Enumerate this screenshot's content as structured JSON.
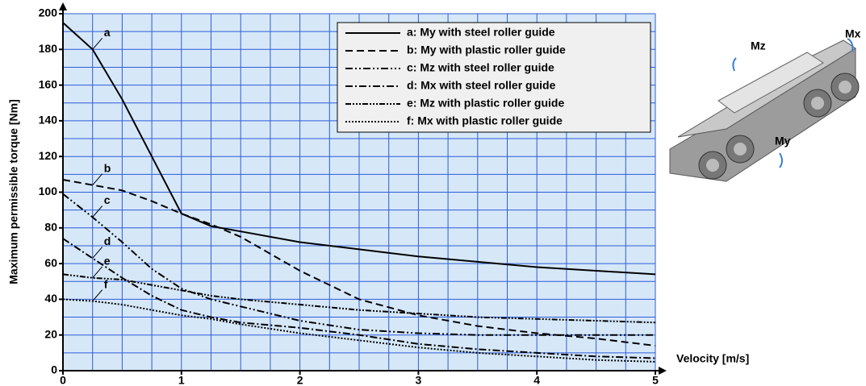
{
  "chart_data": {
    "type": "line",
    "y_label": "Maximum permissible torque [Nm]",
    "x_label": "Velocity [m/s]",
    "x": [
      0,
      0.25,
      0.5,
      0.75,
      1,
      1.25,
      1.5,
      2,
      2.5,
      3,
      3.5,
      4,
      4.5,
      5
    ],
    "series": [
      {
        "name": "a: My with steel roller guide",
        "label": "a",
        "color": "#000000",
        "dash": "none",
        "values": [
          195,
          180,
          152,
          120,
          88,
          81,
          78,
          72,
          68,
          64,
          61,
          58,
          56,
          54
        ]
      },
      {
        "name": "b: My with plastic roller guide",
        "label": "b",
        "color": "#000000",
        "dash": "9 5",
        "values": [
          107,
          104,
          101,
          95,
          88,
          82,
          75,
          56,
          40,
          31,
          25,
          21,
          18,
          14
        ]
      },
      {
        "name": "c: Mz with steel roller guide",
        "label": "c",
        "color": "#000000",
        "dash": "9 3 2 3 2 3",
        "values": [
          99,
          86,
          72,
          57,
          46,
          40,
          36,
          28,
          23,
          21,
          20,
          20,
          20,
          20
        ]
      },
      {
        "name": "d: Mx with steel roller guide",
        "label": "d",
        "color": "#000000",
        "dash": "9 3 2 3",
        "values": [
          74,
          63,
          52,
          42,
          34,
          30,
          27,
          24,
          20,
          15,
          12,
          10,
          8,
          7
        ]
      },
      {
        "name": "e: Mz with plastic roller guide",
        "label": "e",
        "color": "#000000",
        "dash": "7 2 2 2 2 2 2 2",
        "values": [
          54,
          52,
          51,
          48,
          45,
          42,
          40,
          37,
          34,
          32,
          30,
          29,
          28,
          27
        ]
      },
      {
        "name": "f: Mx with plastic roller guide",
        "label": "f",
        "color": "#000000",
        "dash": "2 2",
        "values": [
          40,
          39,
          37,
          34,
          31,
          29,
          26,
          21,
          17,
          13,
          10,
          8,
          6,
          5
        ]
      }
    ],
    "xlim": [
      0,
      5
    ],
    "ylim": [
      0,
      200
    ],
    "xticks": [
      0,
      1,
      2,
      3,
      4,
      5
    ],
    "yticks": [
      0,
      20,
      40,
      60,
      80,
      100,
      120,
      140,
      160,
      180,
      200
    ],
    "xgrid": [
      0.25,
      0.5,
      0.75,
      1,
      1.25,
      1.5,
      1.75,
      2,
      2.25,
      2.5,
      2.75,
      3,
      3.25,
      3.5,
      3.75,
      4,
      4.25,
      4.5,
      4.75,
      5
    ],
    "ygrid": [
      10,
      20,
      30,
      40,
      50,
      60,
      70,
      80,
      90,
      100,
      110,
      120,
      130,
      140,
      150,
      160,
      170,
      180,
      190,
      200
    ],
    "grid": true,
    "grid_color": "#2f5bd8",
    "background": "#d6e8f8",
    "legend": "upper right"
  },
  "illustration": {
    "labels": [
      "Mz",
      "Mx",
      "My"
    ]
  }
}
